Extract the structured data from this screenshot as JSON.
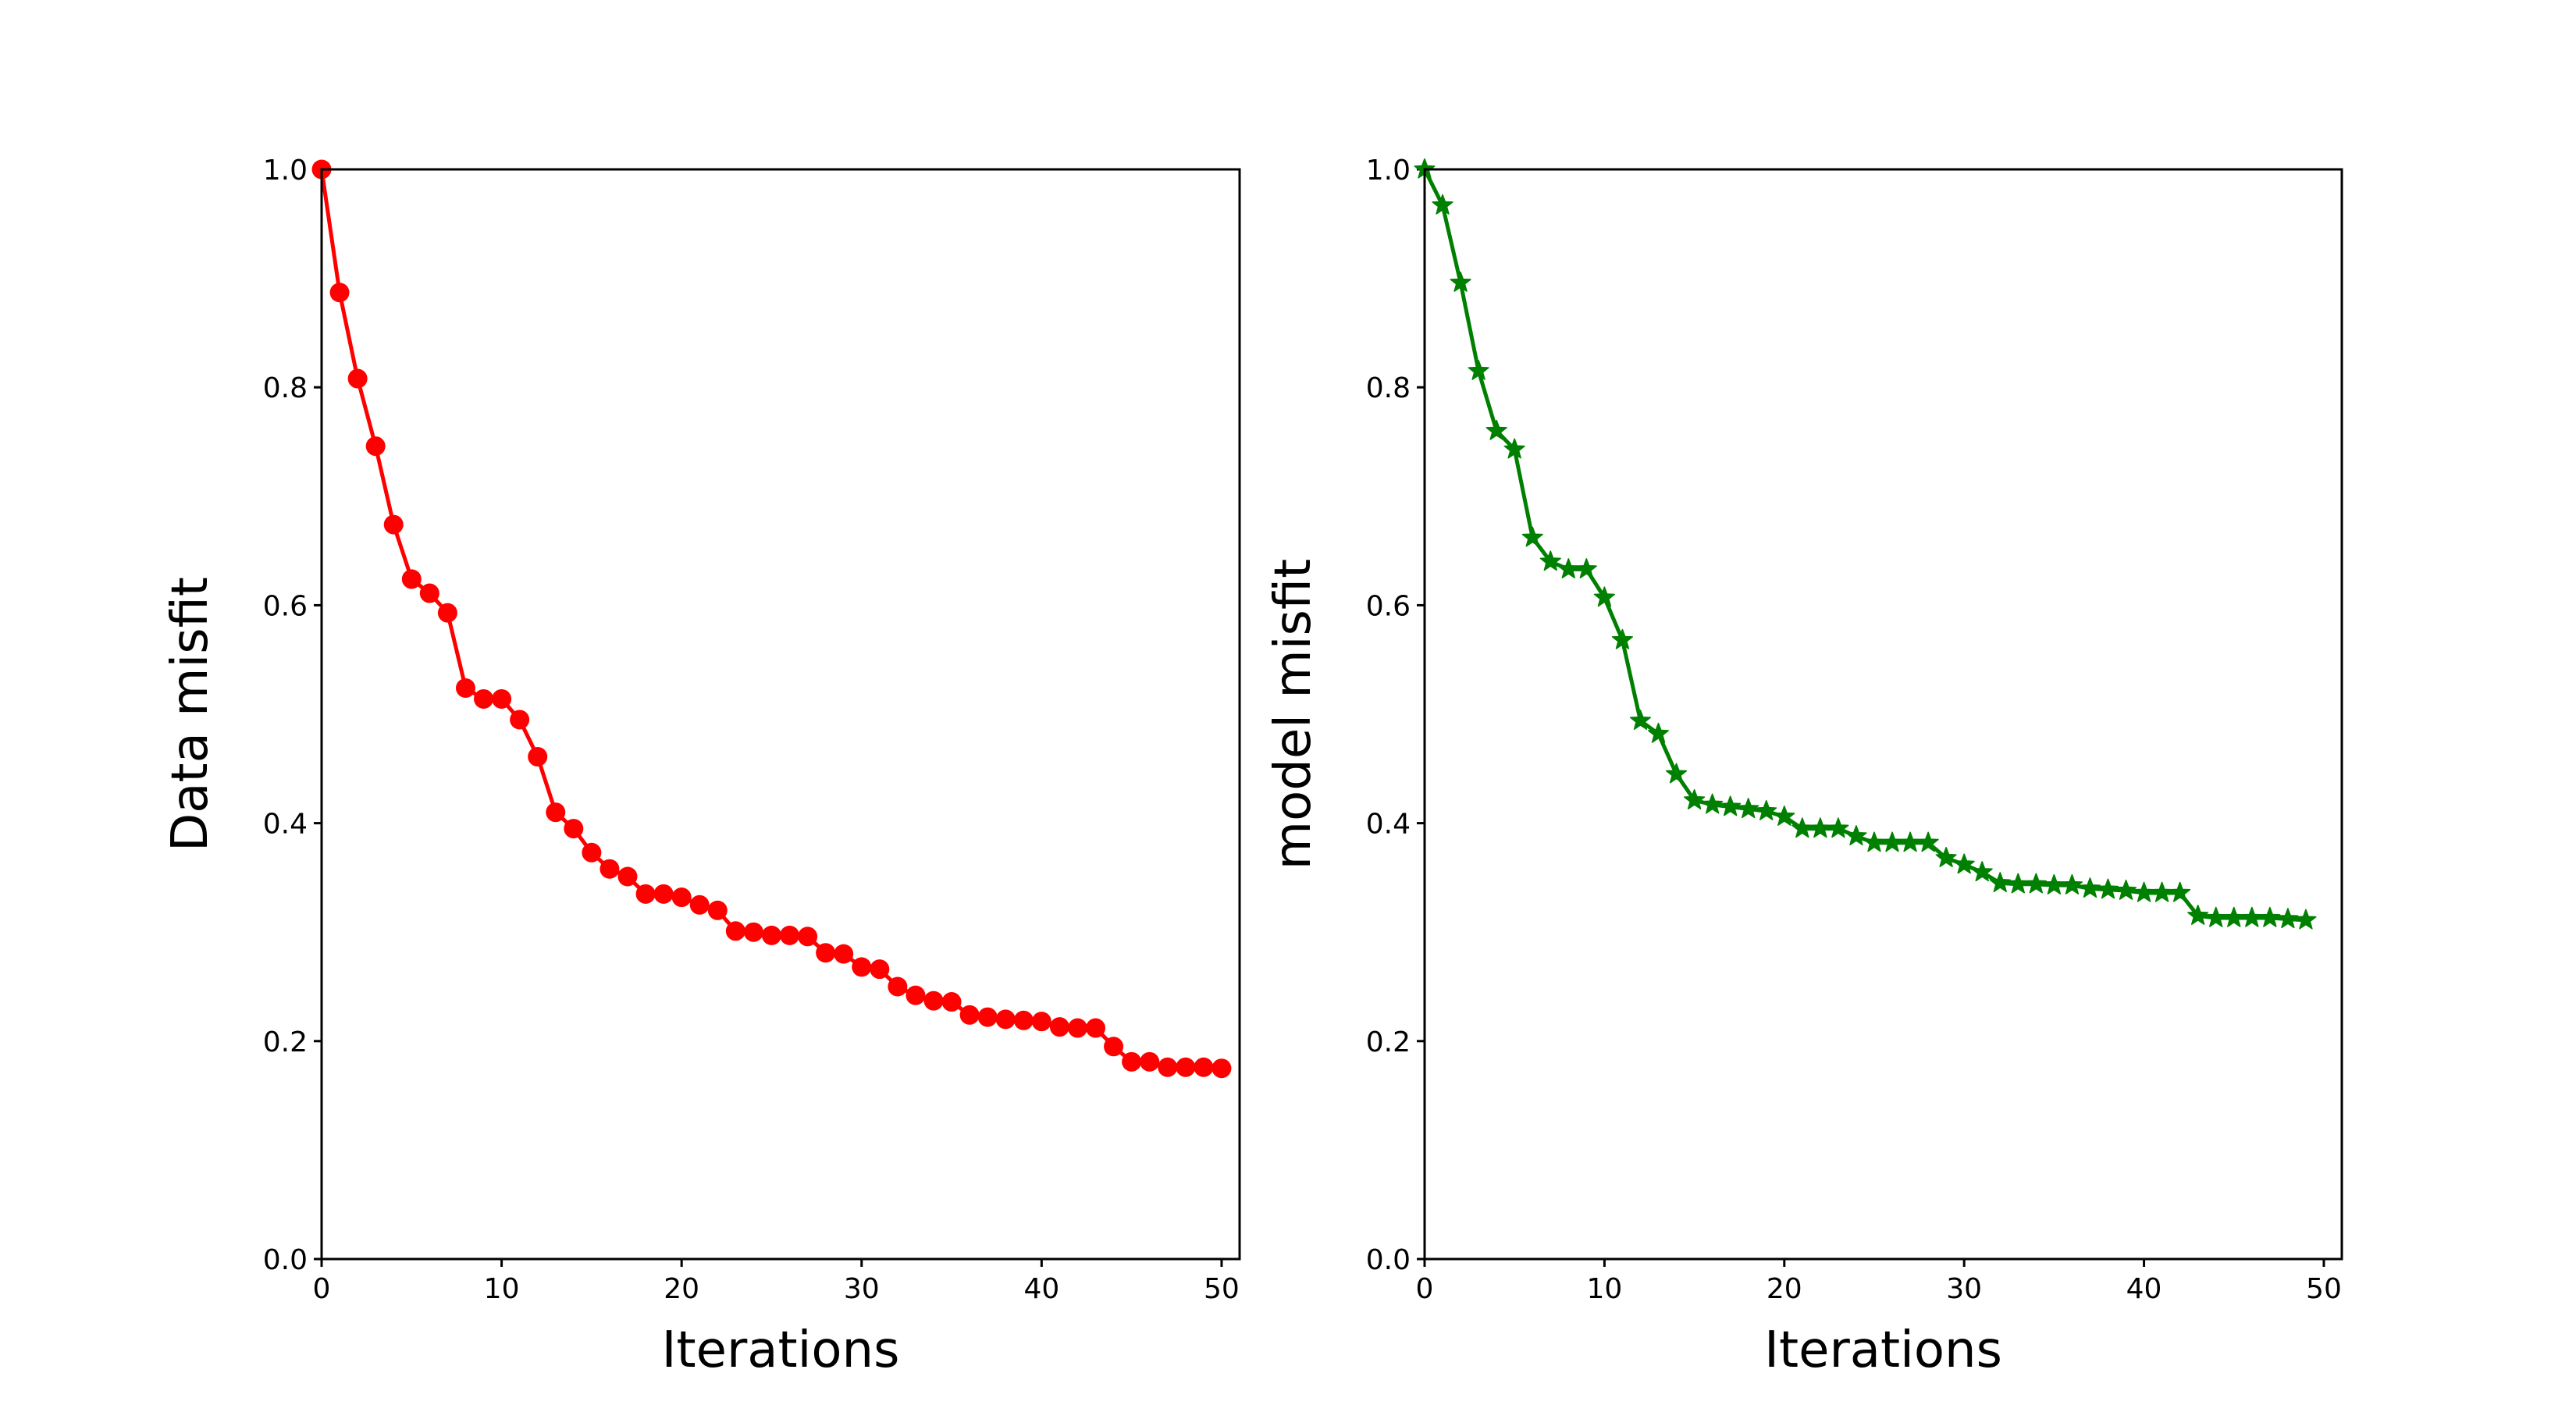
{
  "chart_data": [
    {
      "type": "line",
      "xlabel": "Iterations",
      "ylabel": "Data misfit",
      "xlim": [
        0,
        51
      ],
      "ylim": [
        0.0,
        1.0
      ],
      "xticks": [
        "0",
        "10",
        "20",
        "30",
        "40",
        "50"
      ],
      "yticks": [
        "0.0",
        "0.2",
        "0.4",
        "0.6",
        "0.8",
        "1.0"
      ],
      "grid": false,
      "color": "#ff0000",
      "marker": "circle",
      "series": [
        {
          "x": [
            0,
            1,
            2,
            3,
            4,
            5,
            6,
            7,
            8,
            9,
            10,
            11,
            12,
            13,
            14,
            15,
            16,
            17,
            18,
            19,
            20,
            21,
            22,
            23,
            24,
            25,
            26,
            27,
            28,
            29,
            30,
            31,
            32,
            33,
            34,
            35,
            36,
            37,
            38,
            39,
            40,
            41,
            42,
            43,
            44,
            45,
            46,
            47,
            48,
            49,
            50
          ],
          "values": [
            1.0,
            0.887,
            0.808,
            0.746,
            0.674,
            0.624,
            0.611,
            0.593,
            0.524,
            0.514,
            0.514,
            0.495,
            0.461,
            0.41,
            0.395,
            0.373,
            0.358,
            0.351,
            0.335,
            0.335,
            0.332,
            0.325,
            0.32,
            0.301,
            0.3,
            0.297,
            0.297,
            0.296,
            0.281,
            0.28,
            0.268,
            0.266,
            0.25,
            0.242,
            0.237,
            0.236,
            0.224,
            0.222,
            0.22,
            0.219,
            0.218,
            0.213,
            0.212,
            0.212,
            0.195,
            0.181,
            0.181,
            0.176,
            0.176,
            0.176,
            0.175
          ]
        }
      ]
    },
    {
      "type": "line",
      "xlabel": "Iterations",
      "ylabel": "model misfit",
      "xlim": [
        0,
        51
      ],
      "ylim": [
        0.0,
        1.0
      ],
      "xticks": [
        "0",
        "10",
        "20",
        "30",
        "40",
        "50"
      ],
      "yticks": [
        "0.0",
        "0.2",
        "0.4",
        "0.6",
        "0.8",
        "1.0"
      ],
      "grid": false,
      "color": "#008000",
      "marker": "star",
      "series": [
        {
          "x": [
            0,
            1,
            2,
            3,
            4,
            5,
            6,
            7,
            8,
            9,
            10,
            11,
            12,
            13,
            14,
            15,
            16,
            17,
            18,
            19,
            20,
            21,
            22,
            23,
            24,
            25,
            26,
            27,
            28,
            29,
            30,
            31,
            32,
            33,
            34,
            35,
            36,
            37,
            38,
            39,
            40,
            41,
            42,
            43,
            44,
            45,
            46,
            47,
            48,
            49
          ],
          "values": [
            1.0,
            0.967,
            0.896,
            0.815,
            0.76,
            0.743,
            0.662,
            0.64,
            0.633,
            0.633,
            0.607,
            0.568,
            0.494,
            0.482,
            0.445,
            0.421,
            0.417,
            0.415,
            0.413,
            0.411,
            0.406,
            0.395,
            0.395,
            0.395,
            0.388,
            0.382,
            0.382,
            0.382,
            0.382,
            0.368,
            0.362,
            0.355,
            0.345,
            0.344,
            0.344,
            0.343,
            0.343,
            0.34,
            0.339,
            0.338,
            0.336,
            0.336,
            0.336,
            0.315,
            0.313,
            0.313,
            0.313,
            0.313,
            0.312,
            0.311
          ]
        }
      ]
    }
  ]
}
